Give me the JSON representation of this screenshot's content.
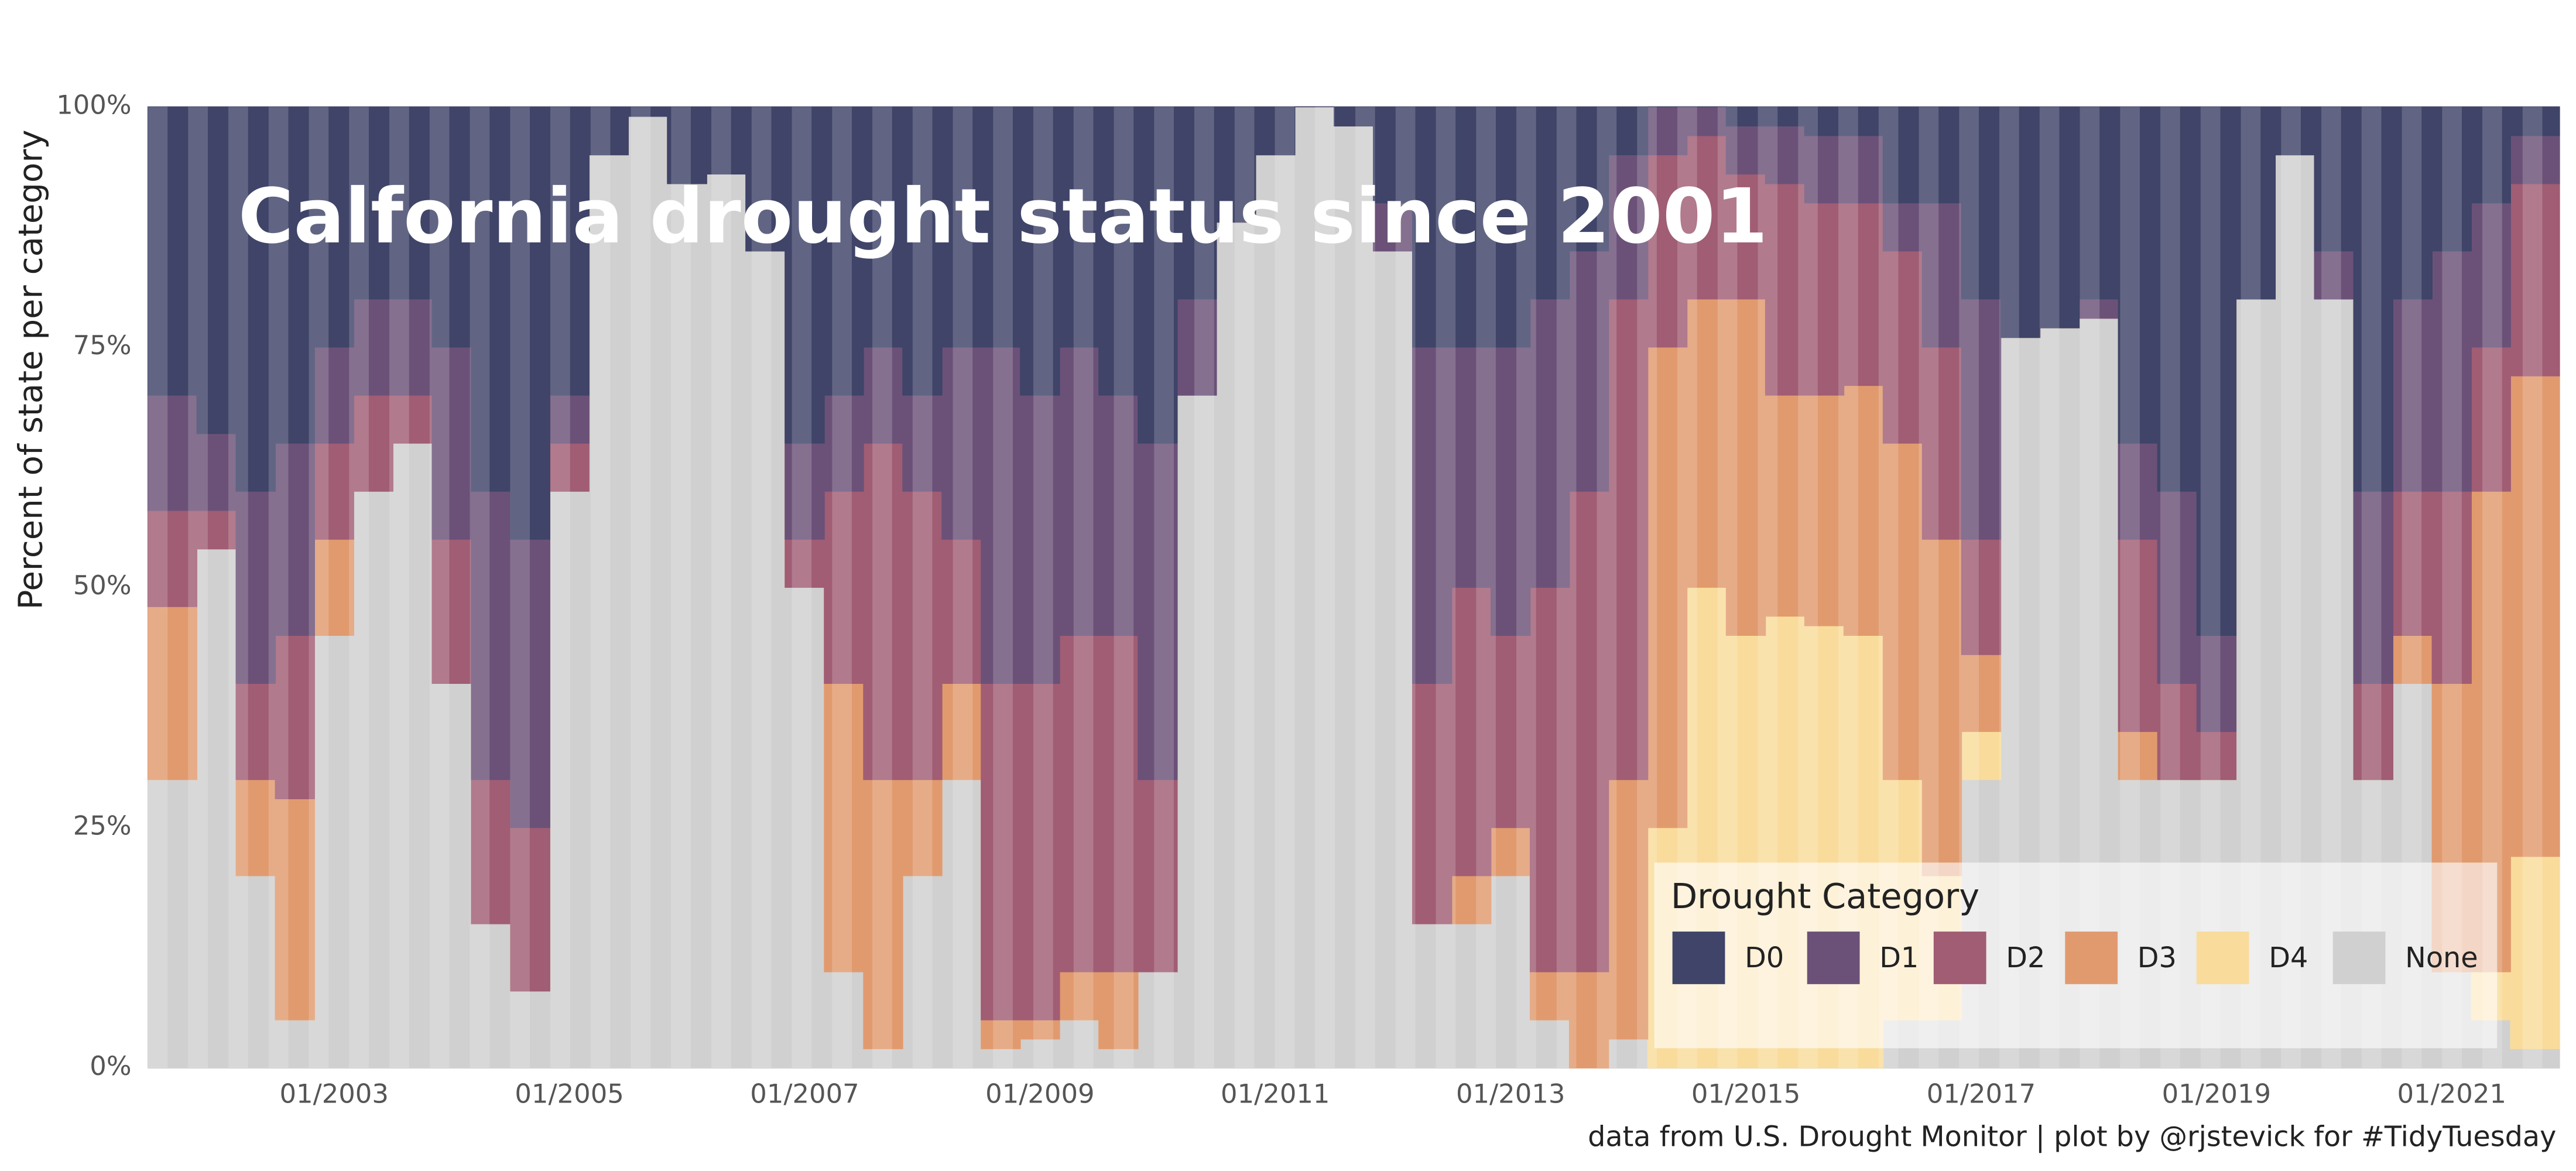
{
  "chart_data": {
    "type": "stacked-area",
    "title": "Calfornia drought status since 2001",
    "y_label": "Percent of state per category",
    "caption": "data from U.S. Drought Monitor | plot by @rjstevick for #TidyTuesday",
    "legend_title": "Drought Category",
    "legend_position": "bottom-right",
    "x": [
      "09/2001",
      "01/2002",
      "05/2002",
      "09/2002",
      "01/2003",
      "05/2003",
      "09/2003",
      "01/2004",
      "05/2004",
      "09/2004",
      "01/2005",
      "05/2005",
      "09/2005",
      "01/2006",
      "05/2006",
      "09/2006",
      "01/2007",
      "05/2007",
      "09/2007",
      "01/2008",
      "05/2008",
      "09/2008",
      "01/2009",
      "05/2009",
      "09/2009",
      "01/2010",
      "05/2010",
      "09/2010",
      "01/2011",
      "05/2011",
      "09/2011",
      "01/2012",
      "05/2012",
      "09/2012",
      "01/2013",
      "05/2013",
      "09/2013",
      "01/2014",
      "05/2014",
      "09/2014",
      "01/2015",
      "05/2015",
      "09/2015",
      "01/2016",
      "05/2016",
      "09/2016",
      "01/2017",
      "05/2017",
      "09/2017",
      "01/2018",
      "05/2018",
      "09/2018",
      "01/2019",
      "05/2019",
      "09/2019",
      "01/2020",
      "05/2020",
      "09/2020",
      "01/2021",
      "05/2021",
      "09/2021"
    ],
    "xlim": [
      "06/2001",
      "12/2021"
    ],
    "xticks": [
      "01/2003",
      "01/2005",
      "01/2007",
      "01/2009",
      "01/2011",
      "01/2013",
      "01/2015",
      "01/2017",
      "01/2019",
      "01/2021"
    ],
    "ylim": [
      0,
      100
    ],
    "yticks": [
      {
        "value": 0,
        "label": "0%"
      },
      {
        "value": 25,
        "label": "25%"
      },
      {
        "value": 50,
        "label": "50%"
      },
      {
        "value": 75,
        "label": "75%"
      },
      {
        "value": 100,
        "label": "100%"
      }
    ],
    "grid": true,
    "series": [
      {
        "name": "D0",
        "color": "#3f4468",
        "values": [
          30,
          34,
          40,
          35,
          25,
          20,
          20,
          25,
          40,
          45,
          30,
          5,
          1,
          8,
          7,
          15,
          35,
          30,
          25,
          30,
          25,
          25,
          30,
          25,
          30,
          35,
          20,
          12,
          5,
          0,
          2,
          10,
          25,
          25,
          25,
          20,
          15,
          5,
          0,
          0,
          2,
          2,
          3,
          3,
          10,
          10,
          20,
          24,
          23,
          20,
          35,
          40,
          55,
          20,
          5,
          15,
          40,
          20,
          15,
          10,
          3
        ]
      },
      {
        "name": "D1",
        "color": "#6b5178",
        "values": [
          12,
          8,
          20,
          20,
          10,
          10,
          10,
          20,
          30,
          30,
          5,
          0,
          0,
          0,
          0,
          0,
          10,
          10,
          10,
          10,
          20,
          35,
          30,
          30,
          25,
          35,
          10,
          0,
          0,
          0,
          0,
          5,
          35,
          25,
          30,
          30,
          25,
          15,
          5,
          3,
          5,
          6,
          7,
          7,
          5,
          15,
          25,
          0,
          0,
          2,
          10,
          20,
          10,
          0,
          0,
          5,
          20,
          20,
          25,
          15,
          5
        ]
      },
      {
        "name": "D2",
        "color": "#a05d74",
        "values": [
          10,
          4,
          10,
          17,
          10,
          10,
          5,
          15,
          15,
          17,
          5,
          0,
          0,
          0,
          0,
          0,
          5,
          20,
          35,
          30,
          15,
          35,
          35,
          35,
          35,
          20,
          0,
          0,
          0,
          0,
          0,
          0,
          25,
          30,
          20,
          40,
          50,
          50,
          20,
          17,
          13,
          22,
          20,
          19,
          20,
          20,
          12,
          0,
          0,
          0,
          20,
          10,
          5,
          0,
          0,
          0,
          10,
          15,
          20,
          15,
          20
        ]
      },
      {
        "name": "D3",
        "color": "#e19a6e",
        "values": [
          18,
          0,
          10,
          23,
          10,
          0,
          0,
          0,
          0,
          0,
          0,
          0,
          0,
          0,
          0,
          0,
          0,
          30,
          28,
          10,
          10,
          3,
          2,
          5,
          8,
          0,
          0,
          0,
          0,
          0,
          0,
          0,
          0,
          5,
          5,
          5,
          10,
          27,
          50,
          30,
          35,
          23,
          24,
          26,
          35,
          35,
          8,
          0,
          0,
          0,
          5,
          0,
          0,
          0,
          0,
          0,
          0,
          5,
          30,
          50,
          50
        ]
      },
      {
        "name": "D4",
        "color": "#f9dc9b",
        "values": [
          0,
          0,
          0,
          0,
          0,
          0,
          0,
          0,
          0,
          0,
          0,
          0,
          0,
          0,
          0,
          0,
          0,
          0,
          0,
          0,
          0,
          0,
          0,
          0,
          0,
          0,
          0,
          0,
          0,
          0,
          0,
          0,
          0,
          0,
          0,
          0,
          0,
          0,
          25,
          50,
          45,
          47,
          46,
          45,
          25,
          15,
          5,
          0,
          0,
          0,
          0,
          0,
          0,
          0,
          0,
          0,
          0,
          0,
          0,
          5,
          20
        ]
      },
      {
        "name": "None",
        "color": "#d0d0d0",
        "values": [
          30,
          54,
          20,
          5,
          45,
          60,
          65,
          40,
          15,
          8,
          60,
          95,
          99,
          92,
          93,
          85,
          50,
          10,
          2,
          20,
          30,
          2,
          3,
          5,
          2,
          10,
          70,
          88,
          95,
          100,
          98,
          85,
          15,
          15,
          20,
          5,
          0,
          3,
          0,
          0,
          0,
          0,
          0,
          0,
          5,
          5,
          30,
          76,
          77,
          78,
          30,
          30,
          30,
          80,
          95,
          80,
          30,
          40,
          10,
          5,
          2
        ]
      }
    ]
  }
}
